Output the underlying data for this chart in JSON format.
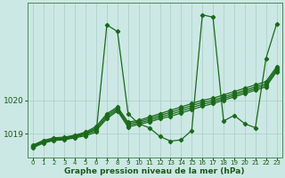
{
  "xlabel": "Graphe pression niveau de la mer (hPa)",
  "x_ticks": [
    0,
    1,
    2,
    3,
    4,
    5,
    6,
    7,
    8,
    9,
    10,
    11,
    12,
    13,
    14,
    15,
    16,
    17,
    18,
    19,
    20,
    21,
    22,
    23
  ],
  "yticks": [
    1019,
    1020
  ],
  "ylim": [
    1018.3,
    1022.9
  ],
  "xlim": [
    -0.5,
    23.5
  ],
  "bg_color": "#cce8e4",
  "line_color": "#1a6a1a",
  "grid_color": "#aaccca",
  "series": [
    [
      1018.58,
      1018.72,
      1018.8,
      1018.82,
      1018.88,
      1018.94,
      1019.05,
      1022.25,
      1022.05,
      1019.6,
      1019.3,
      1019.18,
      1018.92,
      1018.78,
      1018.82,
      1019.1,
      1022.55,
      1022.48,
      1019.38,
      1019.55,
      1019.3,
      1019.18,
      1021.25,
      1022.28
    ],
    [
      1018.6,
      1018.74,
      1018.82,
      1018.84,
      1018.9,
      1018.98,
      1019.1,
      1019.45,
      1019.68,
      1019.2,
      1019.28,
      1019.35,
      1019.45,
      1019.52,
      1019.62,
      1019.72,
      1019.82,
      1019.9,
      1020.0,
      1020.1,
      1020.2,
      1020.3,
      1020.4,
      1020.85
    ],
    [
      1018.62,
      1018.76,
      1018.84,
      1018.86,
      1018.92,
      1019.0,
      1019.14,
      1019.5,
      1019.72,
      1019.25,
      1019.32,
      1019.4,
      1019.5,
      1019.58,
      1019.68,
      1019.78,
      1019.88,
      1019.95,
      1020.05,
      1020.15,
      1020.25,
      1020.35,
      1020.45,
      1020.9
    ],
    [
      1018.64,
      1018.78,
      1018.86,
      1018.88,
      1018.94,
      1019.02,
      1019.18,
      1019.55,
      1019.76,
      1019.3,
      1019.36,
      1019.45,
      1019.55,
      1019.64,
      1019.74,
      1019.84,
      1019.94,
      1020.0,
      1020.1,
      1020.2,
      1020.3,
      1020.4,
      1020.5,
      1020.95
    ],
    [
      1018.66,
      1018.8,
      1018.88,
      1018.9,
      1018.96,
      1019.05,
      1019.22,
      1019.6,
      1019.8,
      1019.35,
      1019.4,
      1019.5,
      1019.6,
      1019.7,
      1019.8,
      1019.9,
      1020.0,
      1020.06,
      1020.16,
      1020.26,
      1020.36,
      1020.46,
      1020.56,
      1021.0
    ]
  ],
  "linewidth": 0.9,
  "markersize": 2.2
}
